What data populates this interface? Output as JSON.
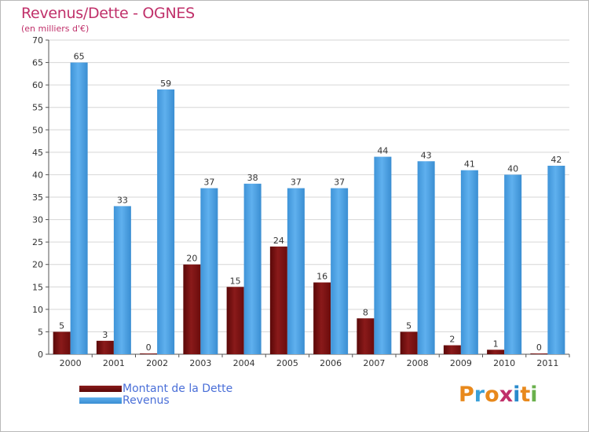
{
  "chart_data": {
    "type": "bar",
    "title": "Revenus/Dette - OGNES",
    "subtitle": "(en milliers d'€)",
    "categories": [
      "2000",
      "2001",
      "2002",
      "2003",
      "2004",
      "2005",
      "2006",
      "2007",
      "2008",
      "2009",
      "2010",
      "2011"
    ],
    "series": [
      {
        "name": "Montant de la Dette",
        "color": "#7a1010",
        "values": [
          5,
          3,
          0,
          20,
          15,
          24,
          16,
          8,
          5,
          2,
          1,
          0
        ]
      },
      {
        "name": "Revenus",
        "color": "#4aa3e6",
        "values": [
          65,
          33,
          59,
          37,
          38,
          37,
          37,
          44,
          43,
          41,
          40,
          42
        ]
      }
    ],
    "ylim": [
      0,
      70
    ],
    "yticks": [
      0,
      5,
      10,
      15,
      20,
      25,
      30,
      35,
      40,
      45,
      50,
      55,
      60,
      65,
      70
    ],
    "grid": true,
    "legend_position": "bottom-left"
  },
  "logo": {
    "text": "Proxiti",
    "colors": [
      "#e8891c",
      "#3aa0d8",
      "#e8891c",
      "#c0306a",
      "#2a8acb",
      "#e8891c",
      "#6ab04c"
    ]
  }
}
